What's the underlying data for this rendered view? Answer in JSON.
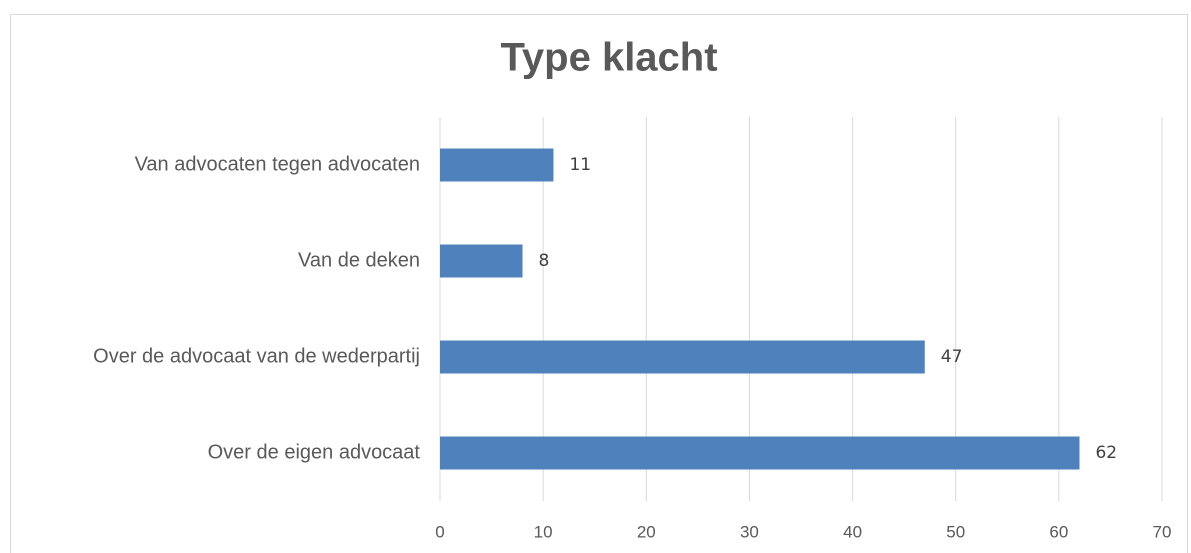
{
  "chart_data": {
    "type": "bar",
    "orientation": "horizontal",
    "title": "Type klacht",
    "categories": [
      "Van advocaten tegen advocaten",
      "Van de deken",
      "Over de advocaat van de wederpartij",
      "Over de eigen advocaat"
    ],
    "values": [
      11,
      8,
      47,
      62
    ],
    "color": "#4f81bd",
    "xlim": [
      0,
      70
    ],
    "xticks": [
      0,
      10,
      20,
      30,
      40,
      50,
      60,
      70
    ],
    "grid": true
  }
}
